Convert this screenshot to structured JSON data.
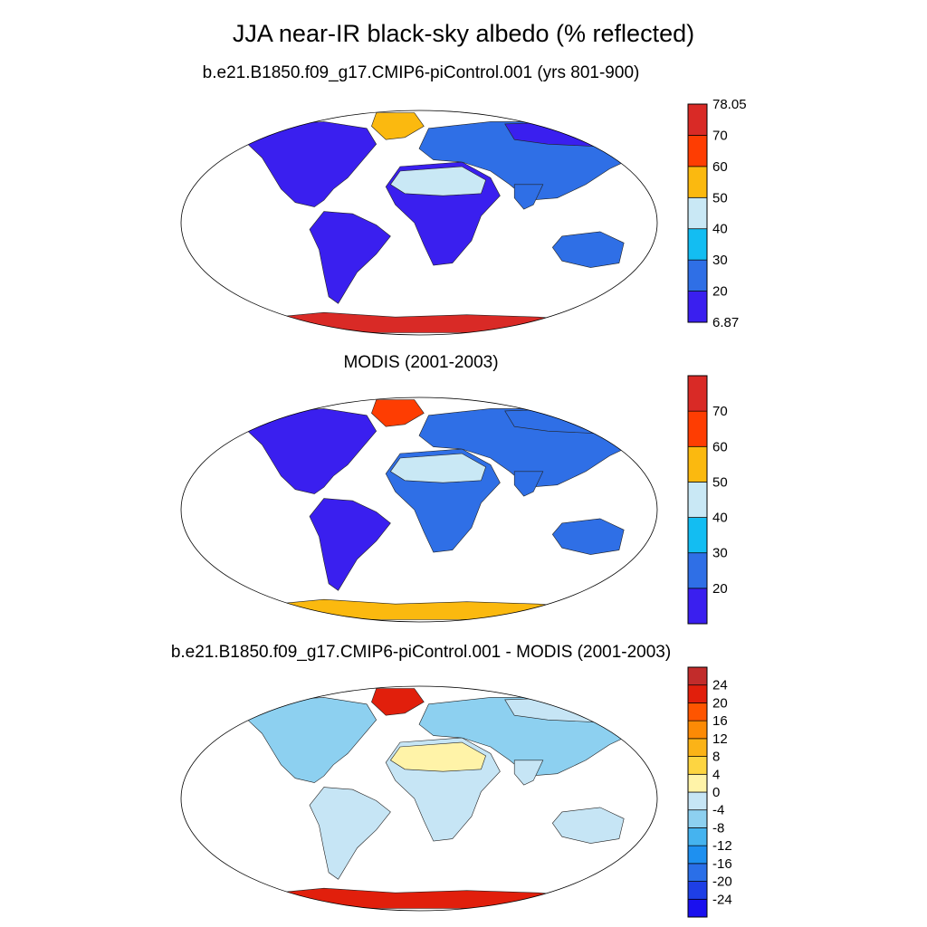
{
  "figure": {
    "title": "JJA near-IR black-sky albedo (% reflected)"
  },
  "panels": [
    {
      "id": "model",
      "title": "b.e21.B1850.f09_g17.CMIP6-piControl.001 (yrs 801-900)",
      "colorbar": {
        "colors": [
          "#3a1fef",
          "#2f6fe6",
          "#13bdf2",
          "#c9e8f5",
          "#fbb90f",
          "#fe3d02",
          "#d92a26"
        ],
        "labels": [
          "6.87",
          "20",
          "30",
          "40",
          "50",
          "60",
          "70",
          "78.05"
        ],
        "label_mode": "edges"
      },
      "fields": {
        "north_america": "#3a1fef",
        "greenland": "#fbb90f",
        "south_america": "#3a1fef",
        "africa": "#3a1fef",
        "sahara": "#c9e8f5",
        "eurasia": "#2f6fe6",
        "siberia": "#3a1fef",
        "india": "#2f6fe6",
        "australia": "#2f6fe6",
        "antarctica": "#d92a26"
      }
    },
    {
      "id": "obs",
      "title": "MODIS (2001-2003)",
      "colorbar": {
        "colors": [
          "#3a1fef",
          "#2f6fe6",
          "#13bdf2",
          "#c9e8f5",
          "#fbb90f",
          "#fe3d02",
          "#d92a26"
        ],
        "labels": [
          "20",
          "30",
          "40",
          "50",
          "60",
          "70"
        ],
        "label_mode": "interior"
      },
      "fields": {
        "north_america": "#3a1fef",
        "greenland": "#fe3d02",
        "south_america": "#3a1fef",
        "africa": "#2f6fe6",
        "sahara": "#c9e8f5",
        "eurasia": "#2f6fe6",
        "siberia": "#2f6fe6",
        "india": "#2f6fe6",
        "australia": "#2f6fe6",
        "antarctica": "#fbb90f"
      }
    },
    {
      "id": "diff",
      "title": "b.e21.B1850.f09_g17.CMIP6-piControl.001 - MODIS (2001-2003)",
      "colorbar": {
        "colors": [
          "#1a10ef",
          "#1e3fe6",
          "#2a6fe8",
          "#1e90f0",
          "#45b3ef",
          "#8dd0f0",
          "#c6e5f5",
          "#fff3a8",
          "#fdd541",
          "#fbb317",
          "#fc8a05",
          "#fe5500",
          "#e11f0c",
          "#c22c2b"
        ],
        "labels": [
          "-24",
          "-20",
          "-16",
          "-12",
          "-8",
          "-4",
          "0",
          "4",
          "8",
          "12",
          "16",
          "20",
          "24"
        ],
        "label_mode": "interior"
      },
      "fields": {
        "north_america": "#8dd0f0",
        "greenland": "#e11f0c",
        "south_america": "#c6e5f5",
        "africa": "#c6e5f5",
        "sahara": "#fff3a8",
        "eurasia": "#8dd0f0",
        "siberia": "#c6e5f5",
        "india": "#c6e5f5",
        "australia": "#c6e5f5",
        "antarctica": "#e11f0c"
      }
    }
  ]
}
